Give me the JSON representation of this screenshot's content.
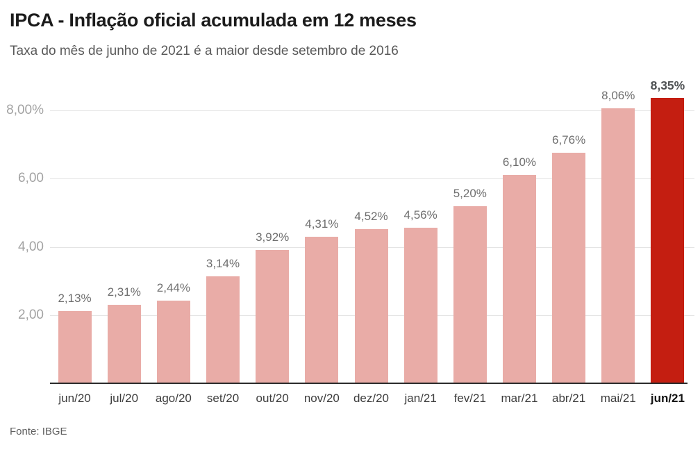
{
  "header": {
    "title": "IPCA - Inflação oficial acumulada em 12 meses",
    "subtitle": "Taxa do mês de junho de 2021 é a maior desde setembro de 2016"
  },
  "footer": {
    "source": "Fonte: IBGE"
  },
  "chart_data": {
    "type": "bar",
    "title": "IPCA - Inflação oficial acumulada em 12 meses",
    "subtitle": "Taxa do mês de junho de 2021 é a maior desde setembro de 2016",
    "categories": [
      "jun/20",
      "jul/20",
      "ago/20",
      "set/20",
      "out/20",
      "nov/20",
      "dez/20",
      "jan/21",
      "fev/21",
      "mar/21",
      "abr/21",
      "mai/21",
      "jun/21"
    ],
    "values": [
      2.13,
      2.31,
      2.44,
      3.14,
      3.92,
      4.31,
      4.52,
      4.56,
      5.2,
      6.1,
      6.76,
      8.06,
      8.35
    ],
    "value_labels": [
      "2,13%",
      "2,31%",
      "2,44%",
      "3,14%",
      "3,92%",
      "4,31%",
      "4,52%",
      "4,56%",
      "5,20%",
      "6,10%",
      "6,76%",
      "8,06%",
      "8,35%"
    ],
    "y_ticks": [
      {
        "value": 2,
        "label": "2,00"
      },
      {
        "value": 4,
        "label": "4,00"
      },
      {
        "value": 6,
        "label": "6,00"
      },
      {
        "value": 8,
        "label": "8,00%"
      }
    ],
    "xlabel": "",
    "ylabel": "",
    "ylim": [
      0,
      9
    ],
    "grid": true,
    "legend_position": "none",
    "highlight_index": 12,
    "bar_color": "#e9aca7",
    "highlight_color": "#c41e11",
    "source": "Fonte: IBGE"
  }
}
